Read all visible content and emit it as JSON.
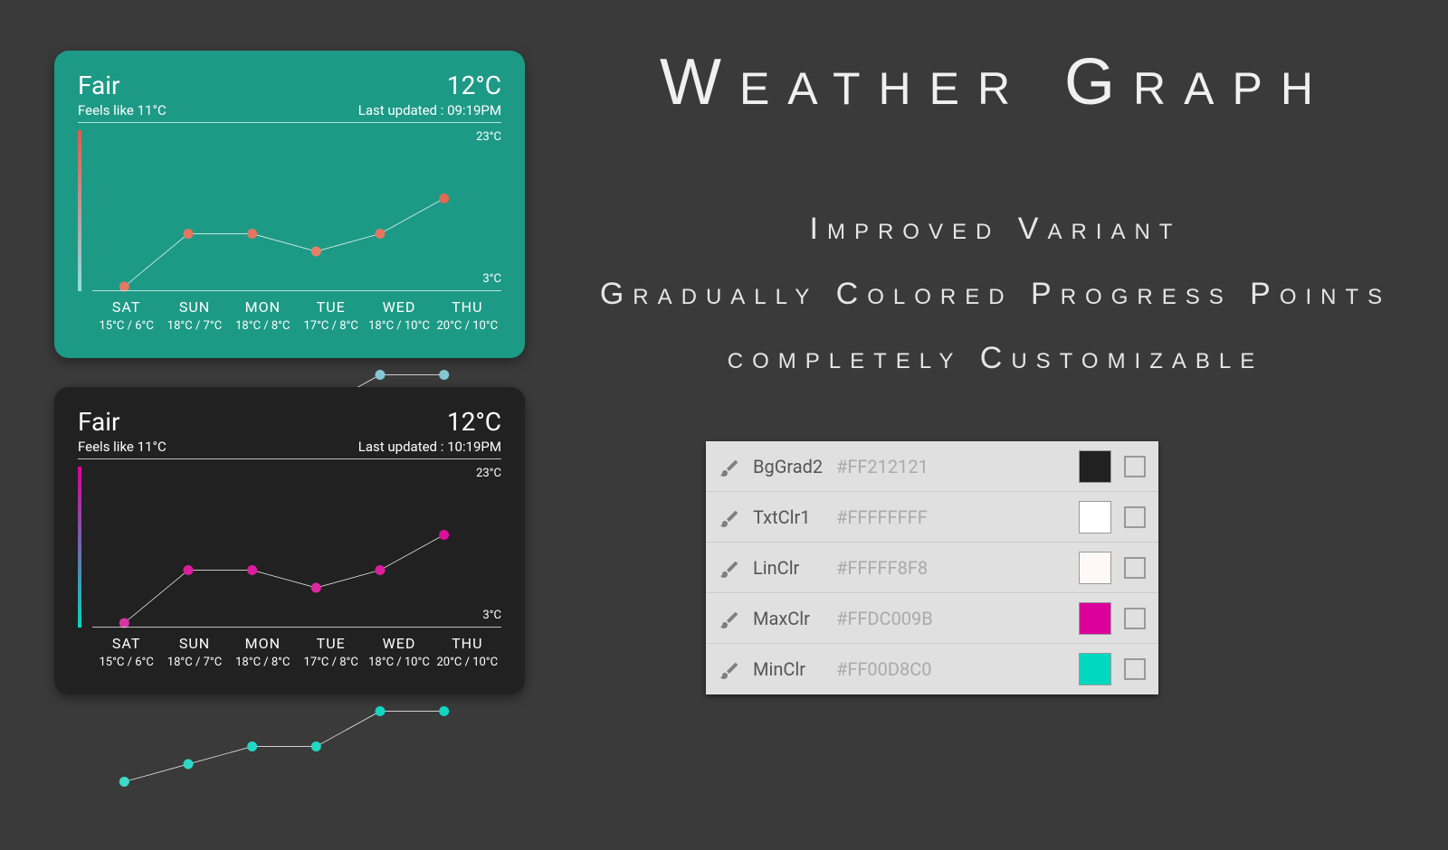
{
  "page_bg": "#3a3a3a",
  "title": "Weather Graph",
  "subtitles": [
    "Improved Variant",
    "Gradually Colored Progress Points",
    "completely Customizable"
  ],
  "cards": [
    {
      "bg": "#1d9a86",
      "condition": "Fair",
      "feels_like": "Feels like 11°C",
      "temp": "12°C",
      "updated": "Last updated : 09:19PM",
      "max_label": "23°C",
      "min_label": "3°C",
      "line_color": "#fefefe",
      "grad_top": "#e55a4a",
      "grad_bottom": "#8fe0e9",
      "days": [
        {
          "name": "SAT",
          "hi": 15,
          "lo": 6,
          "hi_color": "#e27a65",
          "lo_color": "#a6e0e3"
        },
        {
          "name": "SUN",
          "hi": 18,
          "lo": 7,
          "hi_color": "#e17763",
          "lo_color": "#a0dbe0"
        },
        {
          "name": "MON",
          "hi": 18,
          "lo": 8,
          "hi_color": "#e17763",
          "lo_color": "#96d4db"
        },
        {
          "name": "TUE",
          "hi": 17,
          "lo": 8,
          "hi_color": "#e38069",
          "lo_color": "#96d4db"
        },
        {
          "name": "WED",
          "hi": 18,
          "lo": 10,
          "hi_color": "#e17763",
          "lo_color": "#85c7d1"
        },
        {
          "name": "THU",
          "hi": 20,
          "lo": 10,
          "hi_color": "#dd6a56",
          "lo_color": "#85c7d1"
        }
      ],
      "ymin": 3,
      "ymax": 23
    },
    {
      "bg": "#212121",
      "condition": "Fair",
      "feels_like": "Feels like 11°C",
      "temp": "12°C",
      "updated": "Last updated : 10:19PM",
      "max_label": "23°C",
      "min_label": "3°C",
      "line_color": "#fefefe",
      "grad_top": "#dc009b",
      "grad_bottom": "#00d8c0",
      "days": [
        {
          "name": "SAT",
          "hi": 15,
          "lo": 6,
          "hi_color": "#d733a2",
          "lo_color": "#3cd9c8"
        },
        {
          "name": "SUN",
          "hi": 18,
          "lo": 7,
          "hi_color": "#da1f9d",
          "lo_color": "#2fd8c6"
        },
        {
          "name": "MON",
          "hi": 18,
          "lo": 8,
          "hi_color": "#da1f9d",
          "lo_color": "#22d7c3"
        },
        {
          "name": "TUE",
          "hi": 17,
          "lo": 8,
          "hi_color": "#d92aa0",
          "lo_color": "#22d7c3"
        },
        {
          "name": "WED",
          "hi": 18,
          "lo": 10,
          "hi_color": "#da1f9d",
          "lo_color": "#11d6c1"
        },
        {
          "name": "THU",
          "hi": 20,
          "lo": 10,
          "hi_color": "#dc0e9b",
          "lo_color": "#11d6c1"
        }
      ],
      "ymin": 3,
      "ymax": 23
    }
  ],
  "panel": [
    {
      "name": "BgGrad2",
      "hex": "#FF212121",
      "color": "#212121"
    },
    {
      "name": "TxtClr1",
      "hex": "#FFFFFFFF",
      "color": "#ffffff"
    },
    {
      "name": "LinClr",
      "hex": "#FFFFF8F8",
      "color": "#fff8f8"
    },
    {
      "name": "MaxClr",
      "hex": "#FFDC009B",
      "color": "#dc009b"
    },
    {
      "name": "MinClr",
      "hex": "#FF00D8C0",
      "color": "#00d8c0"
    }
  ]
}
